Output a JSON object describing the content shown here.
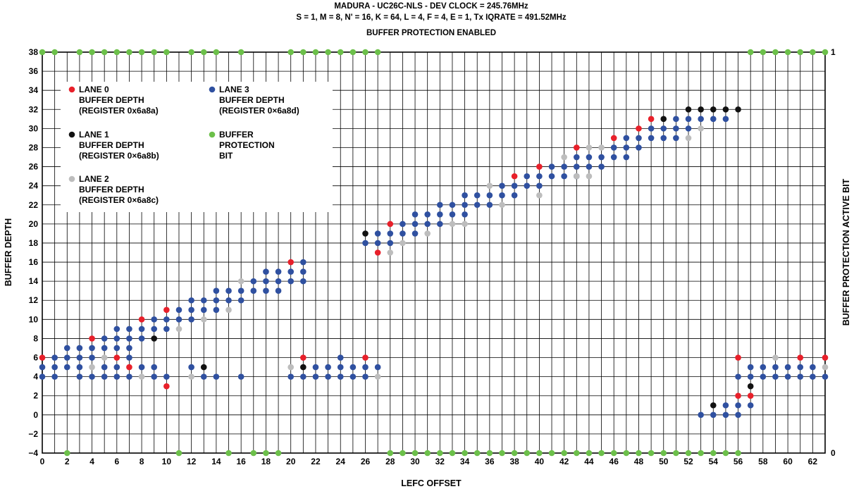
{
  "chart_data": {
    "type": "scatter",
    "title": [
      "MADURA - UC26C-NLS - DEV CLOCK = 245.76MHz",
      "S = 1, M = 8, N' = 16, K = 64, L = 4, F = 4, E = 1, Tx IQRATE = 491.52MHz",
      "BUFFER PROTECTION ENABLED"
    ],
    "xlabel": "LEFC OFFSET",
    "ylabel": "BUFFER DEPTH",
    "y2label": "BUFFER PROTECTION ACTIVE BIT",
    "xlim": [
      0,
      63
    ],
    "ylim": [
      -4,
      38
    ],
    "xticks": [
      "0",
      "2",
      "4",
      "6",
      "8",
      "10",
      "12",
      "14",
      "16",
      "18",
      "20",
      "22",
      "24",
      "26",
      "28",
      "30",
      "32",
      "34",
      "36",
      "38",
      "40",
      "42",
      "44",
      "46",
      "48",
      "50",
      "52",
      "54",
      "56",
      "58",
      "60",
      "62"
    ],
    "yticks": [
      "−4",
      "−2",
      "0",
      "2",
      "4",
      "6",
      "8",
      "10",
      "12",
      "14",
      "16",
      "18",
      "20",
      "22",
      "24",
      "26",
      "28",
      "30",
      "32",
      "34",
      "36",
      "38"
    ],
    "y2ticks": [
      "0",
      "1"
    ],
    "grid": true,
    "legend_position": "top-left",
    "legend": [
      {
        "key": "lane0",
        "lines": [
          "LANE 0",
          "BUFFER DEPTH",
          "(REGISTER 0x6a8a)"
        ],
        "color": "#e8202a"
      },
      {
        "key": "lane1",
        "lines": [
          "LANE 1",
          "BUFFER DEPTH",
          "(REGISTER 0×6a8b)"
        ],
        "color": "#111111"
      },
      {
        "key": "lane2",
        "lines": [
          "LANE 2",
          "BUFFER DEPTH",
          "(REGISTER 0×6a8c)"
        ],
        "color": "#bdbdbd"
      },
      {
        "key": "lane3",
        "lines": [
          "LANE 3",
          "BUFFER DEPTH",
          "(REGISTER 0×6a8d)"
        ],
        "color": "#2f50a0"
      },
      {
        "key": "prot",
        "lines": [
          "BUFFER",
          "PROTECTION",
          "BIT"
        ],
        "color": "#6cc04a"
      }
    ],
    "protection_bit": {
      "color": "#6cc04a",
      "active_x": [
        0,
        1,
        3,
        4,
        5,
        6,
        7,
        8,
        9,
        10,
        12,
        13,
        14,
        16,
        20,
        21,
        22,
        23,
        24,
        25,
        26,
        27,
        57,
        58,
        59,
        60,
        61,
        62,
        63
      ]
    },
    "series": [
      {
        "key": "lane3",
        "color": "#2f50a0",
        "points": [
          [
            0,
            4
          ],
          [
            0,
            5
          ],
          [
            1,
            4
          ],
          [
            1,
            5
          ],
          [
            1,
            6
          ],
          [
            2,
            5
          ],
          [
            2,
            6
          ],
          [
            2,
            7
          ],
          [
            3,
            4
          ],
          [
            3,
            5
          ],
          [
            3,
            6
          ],
          [
            3,
            7
          ],
          [
            4,
            4
          ],
          [
            4,
            6
          ],
          [
            4,
            7
          ],
          [
            5,
            4
          ],
          [
            5,
            5
          ],
          [
            5,
            7
          ],
          [
            5,
            8
          ],
          [
            6,
            4
          ],
          [
            6,
            5
          ],
          [
            6,
            7
          ],
          [
            6,
            8
          ],
          [
            6,
            9
          ],
          [
            7,
            4
          ],
          [
            7,
            6
          ],
          [
            7,
            7
          ],
          [
            7,
            8
          ],
          [
            7,
            9
          ],
          [
            8,
            5
          ],
          [
            8,
            8
          ],
          [
            8,
            9
          ],
          [
            9,
            4
          ],
          [
            9,
            5
          ],
          [
            9,
            9
          ],
          [
            9,
            10
          ],
          [
            10,
            4
          ],
          [
            10,
            9
          ],
          [
            10,
            10
          ],
          [
            11,
            10
          ],
          [
            11,
            11
          ],
          [
            12,
            5
          ],
          [
            12,
            10
          ],
          [
            12,
            11
          ],
          [
            12,
            12
          ],
          [
            13,
            4
          ],
          [
            13,
            11
          ],
          [
            13,
            12
          ],
          [
            14,
            4
          ],
          [
            14,
            11
          ],
          [
            14,
            12
          ],
          [
            14,
            13
          ],
          [
            15,
            12
          ],
          [
            15,
            13
          ],
          [
            16,
            4
          ],
          [
            16,
            12
          ],
          [
            16,
            13
          ],
          [
            17,
            13
          ],
          [
            17,
            14
          ],
          [
            18,
            13
          ],
          [
            18,
            14
          ],
          [
            18,
            15
          ],
          [
            19,
            13
          ],
          [
            19,
            14
          ],
          [
            19,
            15
          ],
          [
            20,
            4
          ],
          [
            20,
            14
          ],
          [
            20,
            15
          ],
          [
            21,
            4
          ],
          [
            21,
            14
          ],
          [
            21,
            15
          ],
          [
            21,
            16
          ],
          [
            22,
            4
          ],
          [
            22,
            5
          ],
          [
            23,
            4
          ],
          [
            23,
            5
          ],
          [
            24,
            4
          ],
          [
            24,
            5
          ],
          [
            24,
            6
          ],
          [
            25,
            4
          ],
          [
            25,
            5
          ],
          [
            26,
            4
          ],
          [
            26,
            5
          ],
          [
            26,
            18
          ],
          [
            27,
            5
          ],
          [
            27,
            18
          ],
          [
            27,
            19
          ],
          [
            28,
            18
          ],
          [
            28,
            19
          ],
          [
            29,
            19
          ],
          [
            29,
            20
          ],
          [
            30,
            19
          ],
          [
            30,
            20
          ],
          [
            30,
            21
          ],
          [
            31,
            20
          ],
          [
            31,
            21
          ],
          [
            32,
            20
          ],
          [
            32,
            21
          ],
          [
            32,
            22
          ],
          [
            33,
            21
          ],
          [
            33,
            22
          ],
          [
            34,
            21
          ],
          [
            34,
            22
          ],
          [
            34,
            23
          ],
          [
            35,
            22
          ],
          [
            35,
            23
          ],
          [
            36,
            22
          ],
          [
            36,
            23
          ],
          [
            37,
            23
          ],
          [
            37,
            24
          ],
          [
            38,
            23
          ],
          [
            38,
            24
          ],
          [
            39,
            24
          ],
          [
            39,
            25
          ],
          [
            40,
            24
          ],
          [
            40,
            25
          ],
          [
            41,
            25
          ],
          [
            41,
            26
          ],
          [
            42,
            25
          ],
          [
            42,
            26
          ],
          [
            43,
            25
          ],
          [
            43,
            26
          ],
          [
            43,
            27
          ],
          [
            44,
            26
          ],
          [
            44,
            27
          ],
          [
            45,
            26
          ],
          [
            45,
            27
          ],
          [
            46,
            27
          ],
          [
            46,
            28
          ],
          [
            47,
            27
          ],
          [
            47,
            28
          ],
          [
            47,
            29
          ],
          [
            48,
            28
          ],
          [
            48,
            29
          ],
          [
            49,
            29
          ],
          [
            49,
            30
          ],
          [
            50,
            29
          ],
          [
            50,
            30
          ],
          [
            51,
            29
          ],
          [
            51,
            30
          ],
          [
            51,
            31
          ],
          [
            52,
            30
          ],
          [
            52,
            31
          ],
          [
            53,
            0
          ],
          [
            53,
            31
          ],
          [
            54,
            0
          ],
          [
            54,
            31
          ],
          [
            55,
            0
          ],
          [
            55,
            1
          ],
          [
            55,
            31
          ],
          [
            56,
            0
          ],
          [
            56,
            1
          ],
          [
            56,
            4
          ],
          [
            57,
            1
          ],
          [
            57,
            4
          ],
          [
            57,
            5
          ],
          [
            58,
            4
          ],
          [
            58,
            5
          ],
          [
            59,
            4
          ],
          [
            59,
            5
          ],
          [
            60,
            4
          ],
          [
            60,
            5
          ],
          [
            61,
            4
          ],
          [
            61,
            5
          ],
          [
            62,
            4
          ],
          [
            62,
            5
          ],
          [
            63,
            4
          ]
        ]
      },
      {
        "key": "lane2",
        "color": "#bdbdbd",
        "points": [
          [
            4,
            5
          ],
          [
            5,
            6
          ],
          [
            8,
            4
          ],
          [
            11,
            9
          ],
          [
            12,
            4
          ],
          [
            13,
            10
          ],
          [
            15,
            11
          ],
          [
            16,
            14
          ],
          [
            20,
            5
          ],
          [
            27,
            4
          ],
          [
            28,
            17
          ],
          [
            29,
            18
          ],
          [
            31,
            19
          ],
          [
            33,
            20
          ],
          [
            34,
            20
          ],
          [
            36,
            24
          ],
          [
            37,
            22
          ],
          [
            40,
            23
          ],
          [
            42,
            27
          ],
          [
            43,
            25
          ],
          [
            44,
            25
          ],
          [
            44,
            28
          ],
          [
            45,
            28
          ],
          [
            52,
            29
          ],
          [
            53,
            30
          ],
          [
            59,
            6
          ],
          [
            63,
            5
          ]
        ]
      },
      {
        "key": "lane0",
        "color": "#e8202a",
        "points": [
          [
            0,
            6
          ],
          [
            4,
            8
          ],
          [
            6,
            6
          ],
          [
            7,
            5
          ],
          [
            8,
            10
          ],
          [
            10,
            3
          ],
          [
            10,
            11
          ],
          [
            20,
            16
          ],
          [
            21,
            6
          ],
          [
            26,
            6
          ],
          [
            27,
            17
          ],
          [
            28,
            20
          ],
          [
            38,
            25
          ],
          [
            40,
            26
          ],
          [
            43,
            28
          ],
          [
            46,
            29
          ],
          [
            48,
            30
          ],
          [
            49,
            31
          ],
          [
            56,
            2
          ],
          [
            56,
            6
          ],
          [
            57,
            2
          ],
          [
            61,
            6
          ],
          [
            63,
            6
          ]
        ]
      },
      {
        "key": "lane1",
        "color": "#111111",
        "points": [
          [
            9,
            8
          ],
          [
            13,
            5
          ],
          [
            21,
            5
          ],
          [
            26,
            19
          ],
          [
            50,
            31
          ],
          [
            52,
            32
          ],
          [
            53,
            32
          ],
          [
            54,
            1
          ],
          [
            54,
            32
          ],
          [
            55,
            32
          ],
          [
            56,
            32
          ],
          [
            57,
            3
          ]
        ]
      }
    ]
  }
}
